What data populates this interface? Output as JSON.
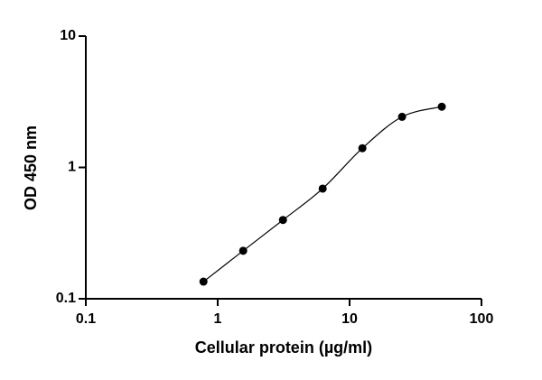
{
  "chart_data": {
    "type": "scatter",
    "xlabel": "Cellular protein (µg/ml)",
    "ylabel": "OD 450 nm",
    "x": [
      0.78,
      1.56,
      3.125,
      6.25,
      12.5,
      25,
      50
    ],
    "series": [
      {
        "color": "#000000",
        "values": [
          0.135,
          0.232,
          0.398,
          0.69,
          1.4,
          2.43,
          2.9
        ]
      }
    ],
    "xscale": "log",
    "yscale": "log",
    "xlim": [
      0.1,
      100
    ],
    "ylim": [
      0.1,
      10
    ],
    "xticks": [
      0.1,
      1,
      10,
      100
    ],
    "yticks": [
      0.1,
      1,
      10
    ],
    "fit_line": true,
    "grid": false
  }
}
